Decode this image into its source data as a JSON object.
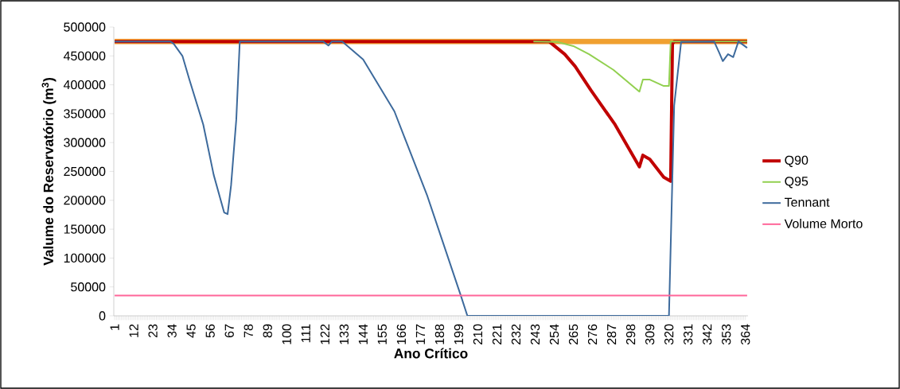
{
  "chart_data": {
    "type": "line",
    "xlabel": "Ano Crítico",
    "ylabel": "Valume do Reservatório (m$^{3}$)",
    "xlim": [
      0.5,
      365.5
    ],
    "xticks": [
      1,
      12,
      23,
      34,
      45,
      56,
      67,
      78,
      89,
      100,
      111,
      122,
      133,
      144,
      155,
      166,
      177,
      188,
      199,
      210,
      221,
      232,
      243,
      254,
      265,
      276,
      287,
      298,
      309,
      320,
      331,
      342,
      353,
      364
    ],
    "ylim": [
      0,
      500000
    ],
    "yticks": [
      0,
      50000,
      100000,
      150000,
      200000,
      250000,
      300000,
      350000,
      400000,
      450000,
      500000
    ],
    "grid": false,
    "legend": "right",
    "marker": "none",
    "line_style": "solid",
    "series": [
      {
        "color": "#f0a030",
        "x": [
          1,
          365
        ],
        "values": [
          475000,
          475000
        ]
      },
      {
        "name": "Q90",
        "color": "#c00000",
        "x": [
          1,
          251,
          260,
          266,
          275,
          289,
          303,
          305,
          309,
          317,
          321,
          322,
          323,
          365
        ],
        "values": [
          475000,
          475000,
          453000,
          432000,
          391000,
          331000,
          258000,
          278000,
          271000,
          240000,
          233000,
          471000,
          475000,
          475000
        ]
      },
      {
        "name": "Q95",
        "color": "#92d050",
        "x": [
          242,
          256,
          265,
          274,
          288,
          303,
          305,
          309,
          317,
          320,
          321,
          365
        ],
        "values": [
          475000,
          474000,
          467000,
          453000,
          426000,
          388000,
          409000,
          409000,
          398000,
          398000,
          475000,
          475000
        ]
      },
      {
        "name": "Tennant",
        "color": "#3d6a9c",
        "x": [
          1,
          33,
          35,
          40,
          44,
          52,
          58,
          64,
          66,
          68,
          71,
          73,
          121,
          124,
          126,
          132,
          144,
          162,
          181,
          200,
          204,
          320,
          323,
          327,
          346,
          349,
          351,
          354,
          357,
          360,
          365
        ],
        "values": [
          475000,
          475000,
          471000,
          450000,
          409000,
          331000,
          244000,
          179000,
          176000,
          226000,
          340000,
          475000,
          475000,
          468000,
          475000,
          475000,
          444000,
          354000,
          207000,
          37000,
          0,
          0,
          364000,
          474000,
          475000,
          455000,
          441000,
          453000,
          448000,
          475000,
          464000
        ]
      },
      {
        "name": "Volume Morto",
        "color": "#ff6699",
        "x": [
          1,
          365
        ],
        "values": [
          35000,
          35000
        ]
      }
    ]
  }
}
